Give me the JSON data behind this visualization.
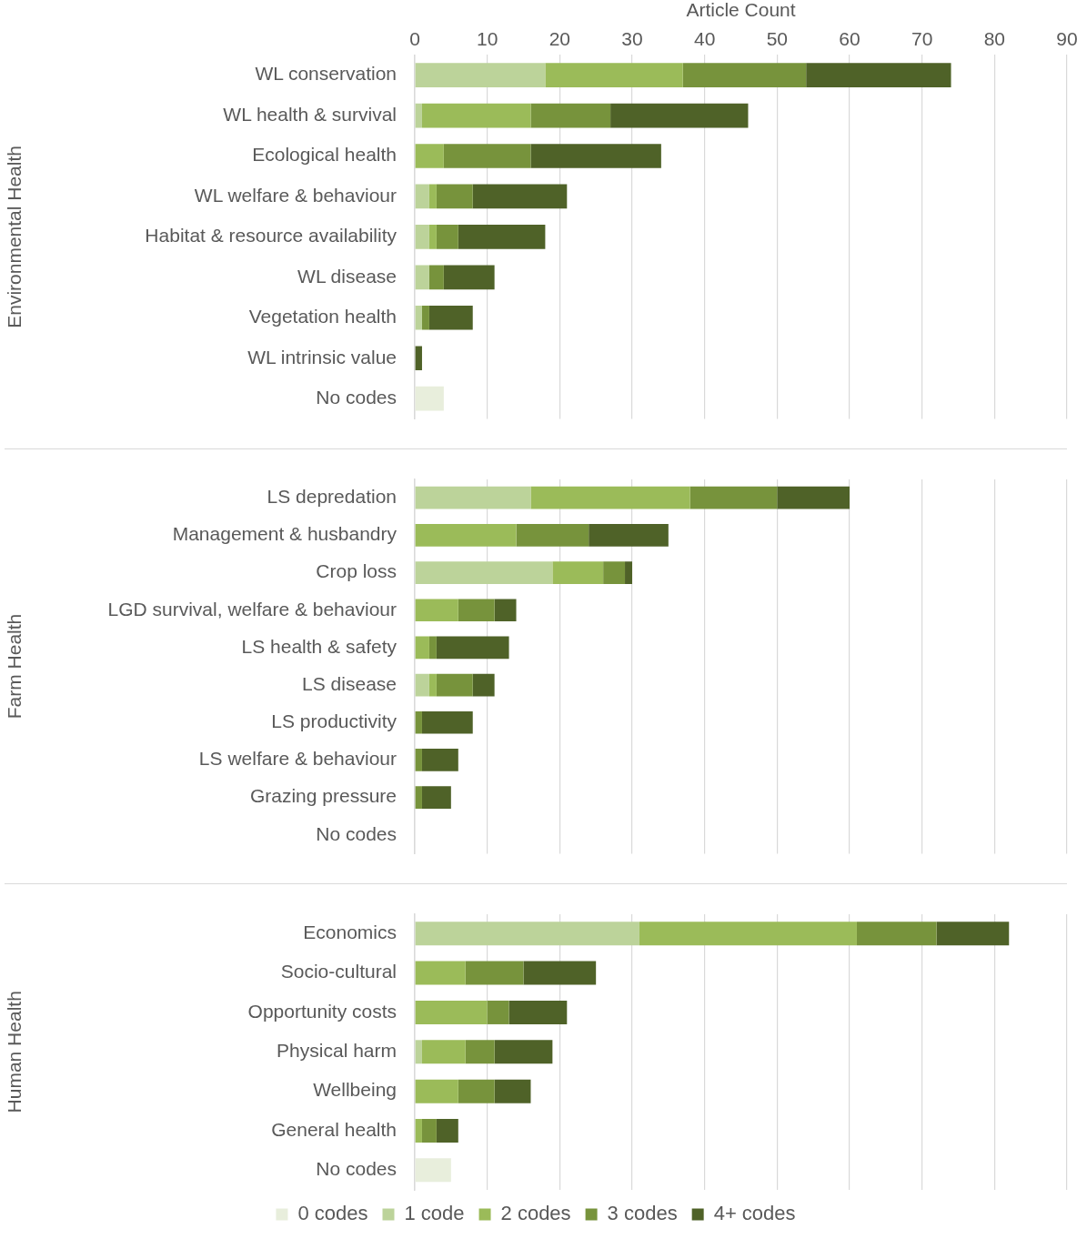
{
  "chart_data": [
    {
      "type": "bar",
      "orientation": "horizontal",
      "stacked": true,
      "xlabel": "Article Count",
      "ylabel": "Environmental Health",
      "categories": [
        "WL conservation",
        "WL health & survival",
        "Ecological health",
        "WL welfare & behaviour",
        "Habitat & resource availability",
        "WL disease",
        "Vegetation health",
        "WL intrinsic value",
        "No codes"
      ],
      "series": [
        {
          "color": "#e8eedc",
          "values": [
            0,
            0,
            0,
            0,
            0,
            0,
            0,
            0,
            4
          ]
        },
        {
          "color": "#bcd39a",
          "values": [
            18,
            1,
            0,
            2,
            2,
            2,
            1,
            0,
            0
          ]
        },
        {
          "color": "#9bbb59",
          "values": [
            19,
            15,
            4,
            1,
            1,
            0,
            0,
            0,
            0
          ]
        },
        {
          "color": "#77933c",
          "values": [
            17,
            11,
            12,
            5,
            3,
            2,
            1,
            0,
            0
          ]
        },
        {
          "color": "#4f6228",
          "values": [
            20,
            19,
            18,
            13,
            12,
            7,
            6,
            1,
            0
          ]
        }
      ],
      "xlim": [
        0,
        90
      ],
      "xticks": [
        0,
        10,
        20,
        30,
        40,
        50,
        60,
        70,
        80,
        90
      ],
      "grid": "x"
    },
    {
      "type": "bar",
      "orientation": "horizontal",
      "stacked": true,
      "ylabel": "Farm Health",
      "categories": [
        "LS depredation",
        "Management & husbandry",
        "Crop loss",
        "LGD survival, welfare & behaviour",
        "LS health & safety",
        "LS disease",
        "LS productivity",
        "LS welfare & behaviour",
        "Grazing pressure",
        "No codes"
      ],
      "series": [
        {
          "color": "#e8eedc",
          "values": [
            0,
            0,
            0,
            0,
            0,
            0,
            0,
            0,
            0,
            0
          ]
        },
        {
          "color": "#bcd39a",
          "values": [
            16,
            0,
            19,
            0,
            0,
            2,
            0,
            0,
            0,
            0
          ]
        },
        {
          "color": "#9bbb59",
          "values": [
            22,
            14,
            7,
            6,
            2,
            1,
            0,
            0,
            0,
            0
          ]
        },
        {
          "color": "#77933c",
          "values": [
            12,
            10,
            3,
            5,
            1,
            5,
            1,
            1,
            1,
            0
          ]
        },
        {
          "color": "#4f6228",
          "values": [
            10,
            11,
            1,
            3,
            10,
            3,
            7,
            5,
            4,
            0
          ]
        }
      ],
      "xlim": [
        0,
        90
      ],
      "xticks": [
        0,
        10,
        20,
        30,
        40,
        50,
        60,
        70,
        80,
        90
      ],
      "grid": "x",
      "tick_labels": "y"
    },
    {
      "type": "bar",
      "orientation": "horizontal",
      "stacked": true,
      "ylabel": "Human Health",
      "categories": [
        "Economics",
        "Socio-cultural",
        "Opportunity costs",
        "Physical harm",
        "Wellbeing",
        "General health",
        "No codes"
      ],
      "series": [
        {
          "name": "0 codes",
          "color": "#e8eedc",
          "values": [
            0,
            0,
            0,
            0,
            0,
            0,
            5
          ]
        },
        {
          "name": "1 code",
          "color": "#bcd39a",
          "values": [
            31,
            0,
            0,
            1,
            0,
            0,
            0
          ]
        },
        {
          "name": "2 codes",
          "color": "#9bbb59",
          "values": [
            30,
            7,
            10,
            6,
            6,
            1,
            0
          ]
        },
        {
          "name": "3 codes",
          "color": "#77933c",
          "values": [
            11,
            8,
            3,
            4,
            5,
            2,
            0
          ]
        },
        {
          "name": "4+ codes",
          "color": "#4f6228",
          "values": [
            10,
            10,
            8,
            8,
            5,
            3,
            0
          ]
        }
      ],
      "xlim": [
        0,
        90
      ],
      "xticks": [
        0,
        10,
        20,
        30,
        40,
        50,
        60,
        70,
        80,
        90
      ],
      "grid": "x",
      "tick_labels": "y",
      "legend": "bottom"
    }
  ]
}
